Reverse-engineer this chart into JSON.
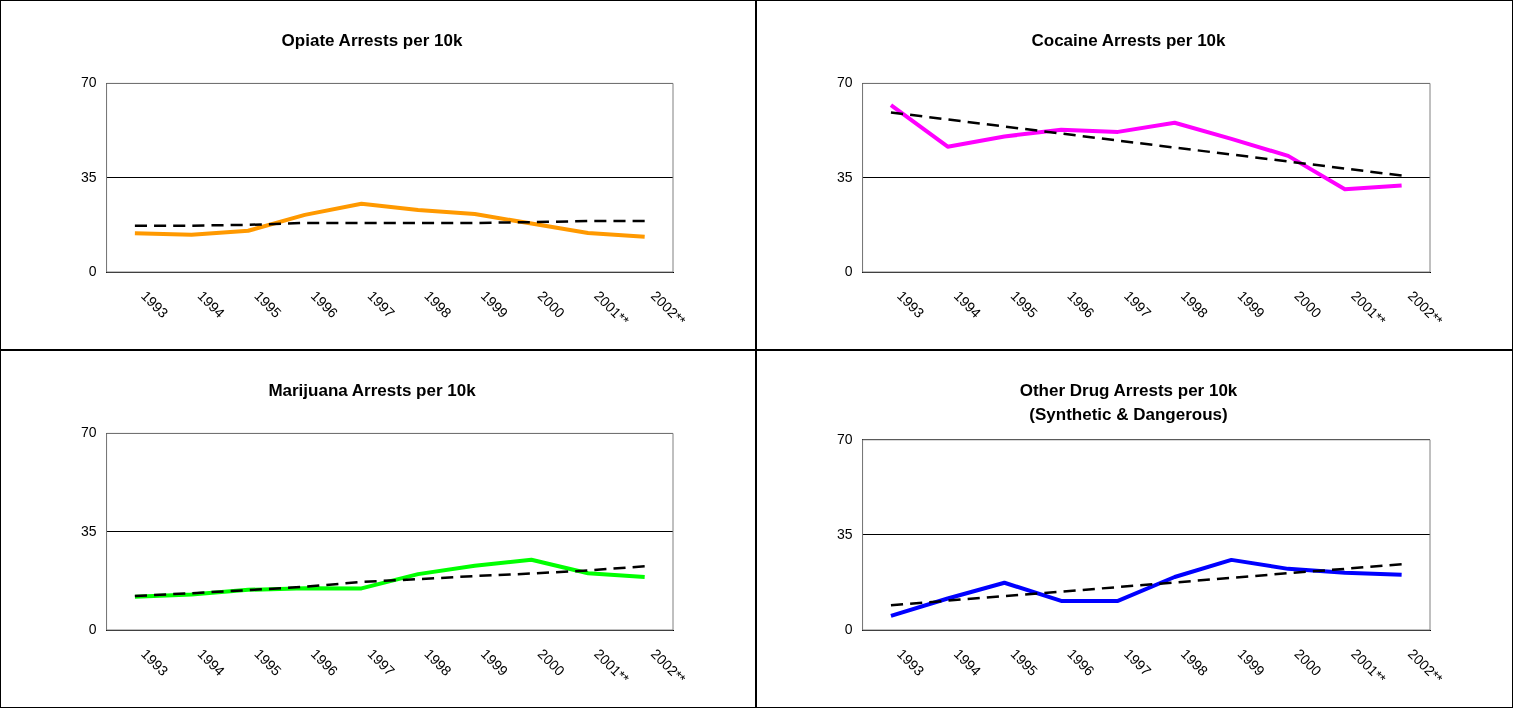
{
  "chart_data": [
    {
      "type": "line",
      "title": "Opiate Arrests per 10k",
      "categories": [
        "1993",
        "1994",
        "1995",
        "1996",
        "1997",
        "1998",
        "1999",
        "2000",
        "2001**",
        "2002**"
      ],
      "ylim": [
        0,
        70
      ],
      "yticks": [
        0,
        35,
        70
      ],
      "grid": "y",
      "legend": false,
      "series": [
        {
          "color": "#ff9900",
          "values": [
            14.4,
            13.8,
            15.3,
            21.2,
            25.3,
            23,
            21.5,
            18,
            14.5,
            13.1
          ]
        },
        {
          "color": "#000000",
          "line_style": "dashed",
          "values": [
            17.2,
            17.2,
            17.5,
            18.2,
            18.2,
            18.2,
            18.2,
            18.5,
            18.9,
            18.9
          ]
        }
      ]
    },
    {
      "type": "line",
      "title": "Cocaine Arrests per 10k",
      "categories": [
        "1993",
        "1994",
        "1995",
        "1996",
        "1997",
        "1998",
        "1999",
        "2000",
        "2001**",
        "2002**"
      ],
      "ylim": [
        0,
        70
      ],
      "yticks": [
        0,
        35,
        70
      ],
      "grid": "y",
      "legend": false,
      "series": [
        {
          "color": "#ff00ff",
          "values": [
            61.9,
            46.5,
            50.3,
            52.8,
            52,
            55.4,
            49.4,
            43.1,
            30.7,
            32.1
          ]
        },
        {
          "color": "#000000",
          "line_style": "dashed",
          "values": [
            59.2,
            56.6,
            54,
            51.4,
            48.8,
            46.2,
            43.6,
            41,
            38.4,
            35.8
          ]
        }
      ]
    },
    {
      "type": "line",
      "title": "Marijuana Arrests per 10k",
      "categories": [
        "1993",
        "1994",
        "1995",
        "1996",
        "1997",
        "1998",
        "1999",
        "2000",
        "2001**",
        "2002**"
      ],
      "ylim": [
        0,
        70
      ],
      "yticks": [
        0,
        35,
        70
      ],
      "grid": "y",
      "legend": false,
      "series": [
        {
          "color": "#00ff00",
          "values": [
            11.8,
            12.6,
            14.3,
            14.9,
            14.8,
            19.9,
            22.9,
            25,
            20.2,
            18.9
          ]
        },
        {
          "color": "#000000",
          "line_style": "dashed",
          "values": [
            12.1,
            13.1,
            14.2,
            15.4,
            17.1,
            18.1,
            19.2,
            20.1,
            21.2,
            22.7
          ]
        }
      ]
    },
    {
      "type": "line",
      "title": "Other Drug Arrests per 10k",
      "subtitle": "(Synthetic & Dangerous)",
      "categories": [
        "1993",
        "1994",
        "1995",
        "1996",
        "1997",
        "1998",
        "1999",
        "2000",
        "2001**",
        "2002**"
      ],
      "ylim": [
        0,
        70
      ],
      "yticks": [
        0,
        35,
        70
      ],
      "grid": "y",
      "legend": false,
      "series": [
        {
          "color": "#0000ff",
          "values": [
            5.2,
            11.6,
            17.4,
            10.7,
            10.7,
            19.5,
            25.8,
            22.5,
            21.1,
            20.3
          ]
        },
        {
          "color": "#000000",
          "line_style": "dashed",
          "values": [
            9.1,
            10.8,
            12.5,
            14.1,
            15.8,
            17.5,
            19.2,
            20.9,
            22.5,
            24.2
          ]
        }
      ]
    }
  ]
}
